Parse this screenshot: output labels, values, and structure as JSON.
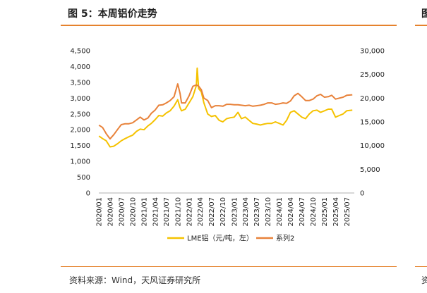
{
  "header": {
    "title": "图 5：本周铝价走势",
    "side_title": "图"
  },
  "footer": {
    "source": "资料来源：Wind，天风证券研究所",
    "side_source": "资"
  },
  "colors": {
    "accent": "#e5822d",
    "series1": "#f5c200",
    "series2": "#e8823a"
  },
  "chart_data": {
    "type": "line",
    "title": "",
    "x_tick_labels": [
      "2020/01",
      "2020/04",
      "2020/07",
      "2020/10",
      "2021/01",
      "2021/04",
      "2021/07",
      "2021/10",
      "2022/01",
      "2022/04",
      "2022/07",
      "2022/10",
      "2023/01",
      "2023/04",
      "2023/07",
      "2023/10",
      "2024/01",
      "2024/04",
      "2024/07",
      "2024/10",
      "2025/01",
      "2025/04",
      "2025/07"
    ],
    "y_left": {
      "lim": [
        0,
        4500
      ],
      "ticks": [
        0,
        500,
        1000,
        1500,
        2000,
        2500,
        3000,
        3500,
        4000,
        4500
      ],
      "tick_labels": [
        "0",
        "500",
        "1,000",
        "1,500",
        "2,000",
        "2,500",
        "3,000",
        "3,500",
        "4,000",
        "4,500"
      ]
    },
    "y_right": {
      "lim": [
        0,
        30000
      ],
      "ticks": [
        0,
        5000,
        10000,
        15000,
        20000,
        25000,
        30000
      ],
      "tick_labels": [
        "0",
        "5,000",
        "10,000",
        "15,000",
        "20,000",
        "25,000",
        "30,000"
      ]
    },
    "legend_position": "bottom",
    "series": [
      {
        "name": "LME铝（元/吨，左）",
        "axis": "left",
        "color": "#f5c200",
        "x": [
          "2020-01-02",
          "2020-02-01",
          "2020-03-01",
          "2020-04-01",
          "2020-05-01",
          "2020-06-01",
          "2020-07-01",
          "2020-08-01",
          "2020-09-01",
          "2020-10-01",
          "2020-11-01",
          "2020-12-01",
          "2021-01-01",
          "2021-02-01",
          "2021-03-01",
          "2021-04-01",
          "2021-05-01",
          "2021-06-01",
          "2021-07-01",
          "2021-08-01",
          "2021-09-01",
          "2021-10-01",
          "2021-10-20",
          "2021-11-01",
          "2021-12-01",
          "2022-01-01",
          "2022-02-01",
          "2022-03-01",
          "2022-03-08",
          "2022-03-20",
          "2022-04-10",
          "2022-05-01",
          "2022-06-01",
          "2022-07-01",
          "2022-08-01",
          "2022-09-01",
          "2022-10-01",
          "2022-11-01",
          "2022-12-01",
          "2023-01-01",
          "2023-02-01",
          "2023-03-01",
          "2023-04-01",
          "2023-05-01",
          "2023-06-01",
          "2023-07-01",
          "2023-08-01",
          "2023-09-01",
          "2023-10-01",
          "2023-11-01",
          "2023-12-01",
          "2024-01-01",
          "2024-02-01",
          "2024-03-01",
          "2024-04-01",
          "2024-05-01",
          "2024-06-01",
          "2024-07-01",
          "2024-08-01",
          "2024-09-01",
          "2024-10-01",
          "2024-11-01",
          "2024-12-01",
          "2025-01-01",
          "2025-02-01",
          "2025-03-01",
          "2025-04-01",
          "2025-05-01",
          "2025-06-01",
          "2025-07-01",
          "2025-08-15"
        ],
        "y": [
          1800,
          1720,
          1650,
          1460,
          1480,
          1560,
          1650,
          1720,
          1780,
          1830,
          1950,
          2020,
          2000,
          2120,
          2200,
          2320,
          2450,
          2430,
          2530,
          2600,
          2750,
          2950,
          2700,
          2600,
          2650,
          2850,
          3050,
          3400,
          3950,
          3300,
          3200,
          2850,
          2500,
          2420,
          2450,
          2300,
          2250,
          2350,
          2380,
          2400,
          2550,
          2350,
          2400,
          2300,
          2200,
          2180,
          2150,
          2180,
          2200,
          2200,
          2250,
          2200,
          2150,
          2300,
          2550,
          2600,
          2500,
          2400,
          2350,
          2500,
          2600,
          2620,
          2550,
          2600,
          2650,
          2650,
          2400,
          2450,
          2500,
          2600,
          2620
        ]
      },
      {
        "name": "系列2",
        "axis": "right",
        "color": "#e8823a",
        "x": [
          "2020-01-02",
          "2020-02-01",
          "2020-03-01",
          "2020-04-01",
          "2020-05-01",
          "2020-06-01",
          "2020-07-01",
          "2020-08-01",
          "2020-09-01",
          "2020-10-01",
          "2020-11-01",
          "2020-12-01",
          "2021-01-01",
          "2021-02-01",
          "2021-03-01",
          "2021-04-01",
          "2021-05-01",
          "2021-06-01",
          "2021-07-01",
          "2021-08-01",
          "2021-09-01",
          "2021-10-01",
          "2021-10-20",
          "2021-11-01",
          "2021-12-01",
          "2022-01-01",
          "2022-02-01",
          "2022-03-01",
          "2022-03-20",
          "2022-04-10",
          "2022-05-01",
          "2022-06-01",
          "2022-07-01",
          "2022-08-01",
          "2022-09-01",
          "2022-10-01",
          "2022-11-01",
          "2022-12-01",
          "2023-01-01",
          "2023-02-01",
          "2023-03-01",
          "2023-04-01",
          "2023-05-01",
          "2023-06-01",
          "2023-07-01",
          "2023-08-01",
          "2023-09-01",
          "2023-10-01",
          "2023-11-01",
          "2023-12-01",
          "2024-01-01",
          "2024-02-01",
          "2024-03-01",
          "2024-04-01",
          "2024-05-01",
          "2024-06-01",
          "2024-07-01",
          "2024-08-01",
          "2024-09-01",
          "2024-10-01",
          "2024-11-01",
          "2024-12-01",
          "2025-01-01",
          "2025-02-01",
          "2025-03-01",
          "2025-04-01",
          "2025-05-01",
          "2025-06-01",
          "2025-07-01",
          "2025-08-15"
        ],
        "y": [
          14300,
          13800,
          12500,
          11400,
          12300,
          13400,
          14400,
          14600,
          14600,
          14800,
          15400,
          16000,
          15400,
          15800,
          16800,
          17500,
          18500,
          18600,
          19000,
          19500,
          20300,
          23000,
          21000,
          19000,
          19000,
          20500,
          22500,
          22800,
          22500,
          21800,
          20000,
          19500,
          18000,
          18400,
          18400,
          18300,
          18700,
          18700,
          18600,
          18600,
          18500,
          18400,
          18500,
          18300,
          18400,
          18500,
          18700,
          19000,
          19000,
          18700,
          18800,
          19000,
          18900,
          19400,
          20500,
          21000,
          20300,
          19500,
          19500,
          19800,
          20500,
          20800,
          20200,
          20300,
          20600,
          19800,
          20000,
          20200,
          20600,
          20700
        ]
      }
    ]
  }
}
